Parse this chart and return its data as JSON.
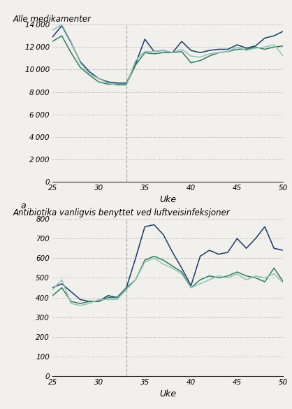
{
  "top_title": "Alle medikamenter",
  "bottom_title": "Antibiotika vanligvis benyttet ved luftveisinfeksjoner",
  "label_a": "a",
  "xlabel": "Uke",
  "dashed_vline": 33,
  "background_color": "#f2f0ec",
  "top": {
    "weeks": [
      25,
      26,
      27,
      28,
      29,
      30,
      31,
      32,
      33,
      34,
      35,
      36,
      37,
      38,
      39,
      40,
      41,
      42,
      43,
      44,
      45,
      46,
      47,
      48,
      49,
      50
    ],
    "line1": [
      12900,
      13900,
      12400,
      10700,
      9800,
      9200,
      8900,
      8800,
      8800,
      10500,
      12700,
      11600,
      11700,
      11500,
      12500,
      11700,
      11500,
      11700,
      11800,
      11800,
      12200,
      11900,
      12100,
      12800,
      13000,
      13400
    ],
    "line2": [
      12500,
      13000,
      11500,
      10200,
      9500,
      8900,
      8700,
      8700,
      8700,
      10400,
      11500,
      11400,
      11500,
      11500,
      11600,
      10600,
      10800,
      11200,
      11500,
      11600,
      11800,
      11800,
      12000,
      11800,
      12000,
      12100
    ],
    "line3": [
      13500,
      14000,
      12500,
      10600,
      9600,
      9200,
      8800,
      8600,
      8600,
      10800,
      11600,
      11600,
      11700,
      11500,
      11800,
      11200,
      11100,
      11400,
      11500,
      11600,
      12000,
      11700,
      11900,
      12000,
      12200,
      11200
    ],
    "ylim": [
      0,
      14000
    ],
    "yticks": [
      0,
      2000,
      4000,
      6000,
      8000,
      10000,
      12000,
      14000
    ],
    "line1_color": "#1a3a6b",
    "line2_color": "#2e7d5e",
    "line3_color": "#90c4b8"
  },
  "bottom": {
    "weeks": [
      25,
      26,
      27,
      28,
      29,
      30,
      31,
      32,
      33,
      34,
      35,
      36,
      37,
      38,
      39,
      40,
      41,
      42,
      43,
      44,
      45,
      46,
      47,
      48,
      49,
      50
    ],
    "line1": [
      450,
      470,
      430,
      390,
      380,
      380,
      410,
      400,
      450,
      600,
      760,
      770,
      720,
      630,
      550,
      460,
      610,
      640,
      620,
      630,
      700,
      650,
      700,
      760,
      650,
      640
    ],
    "line2": [
      410,
      450,
      380,
      370,
      380,
      380,
      400,
      400,
      450,
      490,
      590,
      610,
      590,
      560,
      530,
      450,
      490,
      510,
      500,
      510,
      530,
      510,
      500,
      480,
      550,
      480
    ],
    "line3": [
      440,
      490,
      370,
      360,
      370,
      390,
      390,
      390,
      440,
      490,
      580,
      600,
      570,
      550,
      520,
      450,
      470,
      490,
      510,
      500,
      520,
      490,
      510,
      500,
      520,
      475
    ],
    "ylim": [
      0,
      800
    ],
    "yticks": [
      0,
      100,
      200,
      300,
      400,
      500,
      600,
      700,
      800
    ],
    "line1_color": "#1a3a6b",
    "line2_color": "#2e7d5e",
    "line3_color": "#90c4b8"
  }
}
